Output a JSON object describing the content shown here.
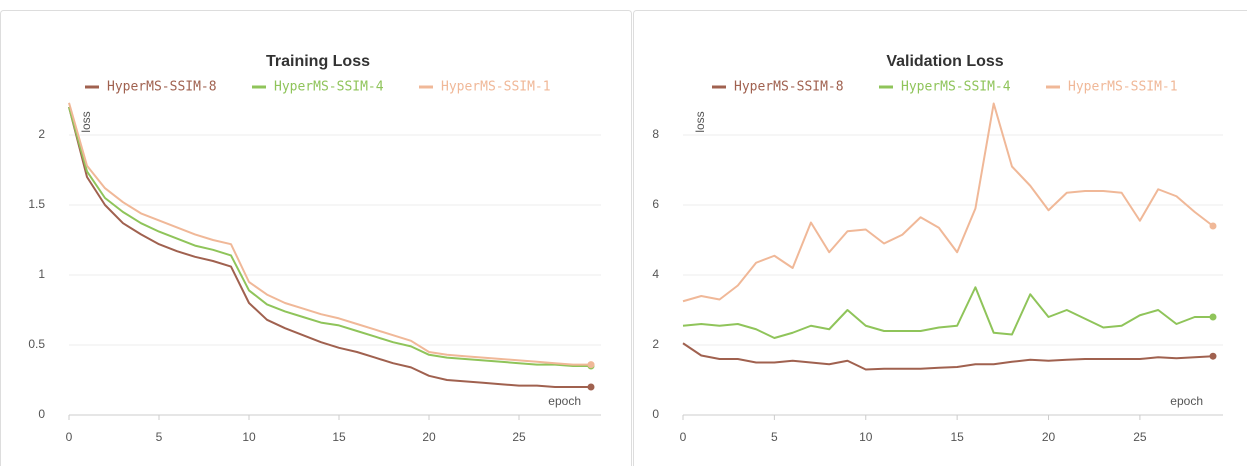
{
  "chart_data": [
    {
      "type": "line",
      "title": "Training Loss",
      "y_label": "loss",
      "x_label": "epoch",
      "x": [
        0,
        1,
        2,
        3,
        4,
        5,
        6,
        7,
        8,
        9,
        10,
        11,
        12,
        13,
        14,
        15,
        16,
        17,
        18,
        19,
        20,
        21,
        22,
        23,
        24,
        25,
        26,
        27,
        28,
        29
      ],
      "series": [
        {
          "name": "HyperMS-SSIM-8",
          "color": "#a0614f",
          "values": [
            2.2,
            1.7,
            1.5,
            1.37,
            1.29,
            1.22,
            1.17,
            1.13,
            1.1,
            1.06,
            0.8,
            0.68,
            0.62,
            0.57,
            0.52,
            0.48,
            0.45,
            0.41,
            0.37,
            0.34,
            0.28,
            0.25,
            0.24,
            0.23,
            0.22,
            0.21,
            0.21,
            0.2,
            0.2,
            0.2
          ]
        },
        {
          "name": "HyperMS-SSIM-4",
          "color": "#8fc45a",
          "values": [
            2.2,
            1.74,
            1.55,
            1.45,
            1.37,
            1.31,
            1.26,
            1.21,
            1.18,
            1.14,
            0.89,
            0.79,
            0.74,
            0.7,
            0.66,
            0.64,
            0.6,
            0.56,
            0.52,
            0.49,
            0.43,
            0.41,
            0.4,
            0.39,
            0.38,
            0.37,
            0.36,
            0.36,
            0.35,
            0.35
          ]
        },
        {
          "name": "HyperMS-SSIM-1",
          "color": "#f0b898",
          "values": [
            2.23,
            1.78,
            1.62,
            1.52,
            1.44,
            1.39,
            1.34,
            1.29,
            1.25,
            1.22,
            0.95,
            0.86,
            0.8,
            0.76,
            0.72,
            0.69,
            0.65,
            0.61,
            0.57,
            0.53,
            0.45,
            0.43,
            0.42,
            0.41,
            0.4,
            0.39,
            0.38,
            0.37,
            0.36,
            0.36
          ]
        }
      ],
      "xlim": [
        0,
        29
      ],
      "xticks": [
        0,
        5,
        10,
        15,
        20,
        25
      ],
      "ylim": [
        0,
        2.25
      ],
      "yticks": [
        0,
        0.5,
        1,
        1.5,
        2
      ],
      "grid": true
    },
    {
      "type": "line",
      "title": "Validation Loss",
      "y_label": "loss",
      "x_label": "epoch",
      "x": [
        0,
        1,
        2,
        3,
        4,
        5,
        6,
        7,
        8,
        9,
        10,
        11,
        12,
        13,
        14,
        15,
        16,
        17,
        18,
        19,
        20,
        21,
        22,
        23,
        24,
        25,
        26,
        27,
        28,
        29
      ],
      "series": [
        {
          "name": "HyperMS-SSIM-8",
          "color": "#a0614f",
          "values": [
            2.05,
            1.7,
            1.6,
            1.6,
            1.5,
            1.5,
            1.55,
            1.5,
            1.45,
            1.55,
            1.3,
            1.32,
            1.32,
            1.32,
            1.35,
            1.37,
            1.45,
            1.45,
            1.52,
            1.58,
            1.55,
            1.58,
            1.6,
            1.6,
            1.6,
            1.6,
            1.65,
            1.62,
            1.65,
            1.68
          ]
        },
        {
          "name": "HyperMS-SSIM-4",
          "color": "#8fc45a",
          "values": [
            2.55,
            2.6,
            2.55,
            2.6,
            2.45,
            2.2,
            2.35,
            2.55,
            2.45,
            3.0,
            2.55,
            2.4,
            2.4,
            2.4,
            2.5,
            2.55,
            3.65,
            2.35,
            2.3,
            3.45,
            2.8,
            3.0,
            2.75,
            2.5,
            2.55,
            2.85,
            3.0,
            2.6,
            2.8,
            2.8
          ]
        },
        {
          "name": "HyperMS-SSIM-1",
          "color": "#f0b898",
          "values": [
            3.25,
            3.4,
            3.3,
            3.7,
            4.35,
            4.55,
            4.2,
            5.5,
            4.65,
            5.25,
            5.3,
            4.9,
            5.15,
            5.65,
            5.35,
            4.65,
            5.9,
            8.9,
            7.1,
            6.55,
            5.85,
            6.35,
            6.4,
            6.4,
            6.35,
            5.55,
            6.45,
            6.25,
            5.8,
            5.4
          ]
        }
      ],
      "xlim": [
        0,
        29
      ],
      "xticks": [
        0,
        5,
        10,
        15,
        20,
        25
      ],
      "ylim": [
        0,
        9
      ],
      "yticks": [
        0,
        2,
        4,
        6,
        8
      ],
      "grid": true
    }
  ]
}
